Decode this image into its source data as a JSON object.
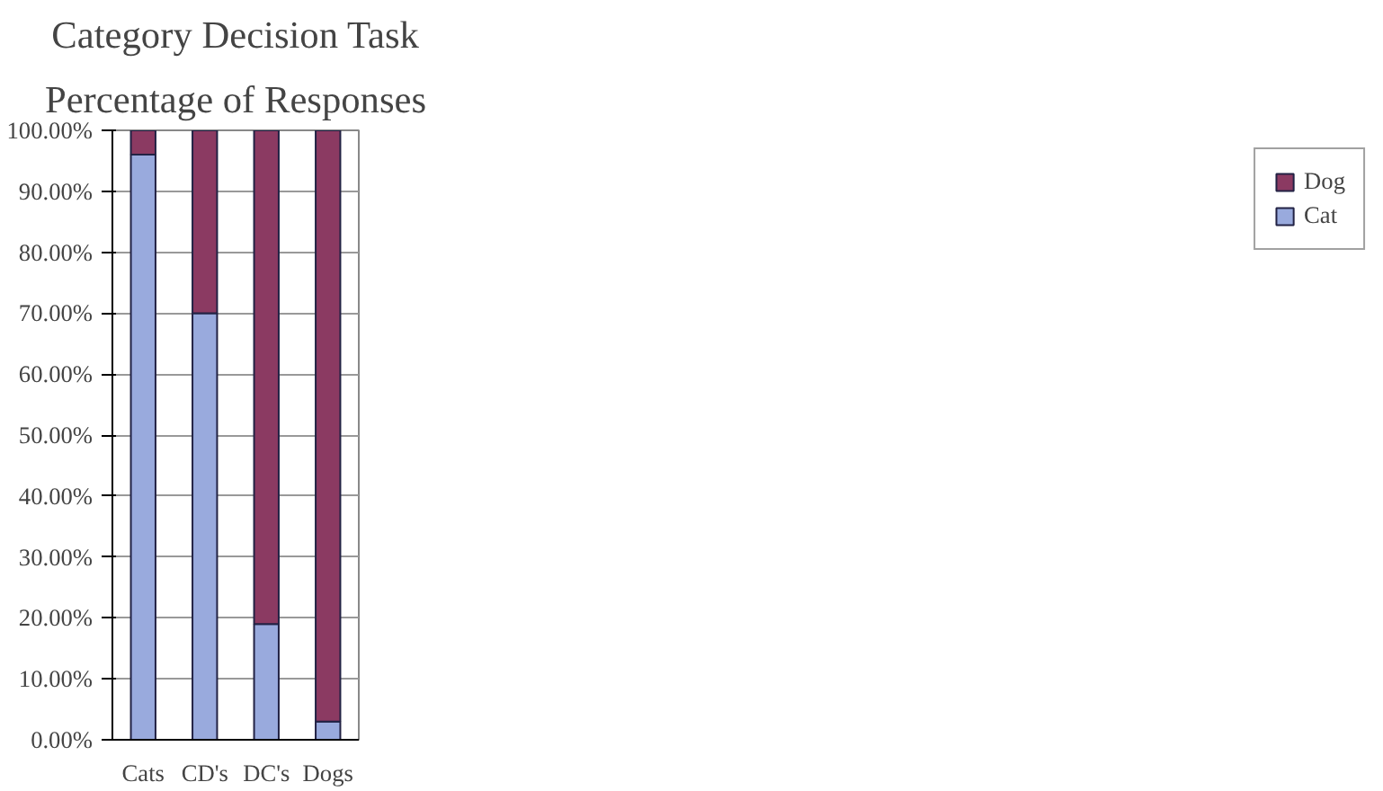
{
  "chart_data": {
    "type": "bar",
    "title": "Category Decision Task",
    "subtitle": "Percentage of Responses",
    "categories": [
      "Cats",
      "CD's",
      "DC's",
      "Dogs"
    ],
    "stacked": true,
    "series": [
      {
        "name": "Cat",
        "color": "#99aadd",
        "values": [
          96,
          70,
          19,
          3
        ]
      },
      {
        "name": "Dog",
        "color": "#8b3a62",
        "values": [
          4,
          30,
          81,
          97
        ]
      }
    ],
    "ylim": [
      0,
      100
    ],
    "yticks": [
      {
        "value": 0,
        "label": "0.00%"
      },
      {
        "value": 10,
        "label": "10.00%"
      },
      {
        "value": 20,
        "label": "20.00%"
      },
      {
        "value": 30,
        "label": "30.00%"
      },
      {
        "value": 40,
        "label": "40.00%"
      },
      {
        "value": 50,
        "label": "50.00%"
      },
      {
        "value": 60,
        "label": "60.00%"
      },
      {
        "value": 70,
        "label": "70.00%"
      },
      {
        "value": 80,
        "label": "80.00%"
      },
      {
        "value": 90,
        "label": "90.00%"
      },
      {
        "value": 100,
        "label": "100.00%"
      }
    ],
    "grid": "y",
    "legend": "right"
  }
}
